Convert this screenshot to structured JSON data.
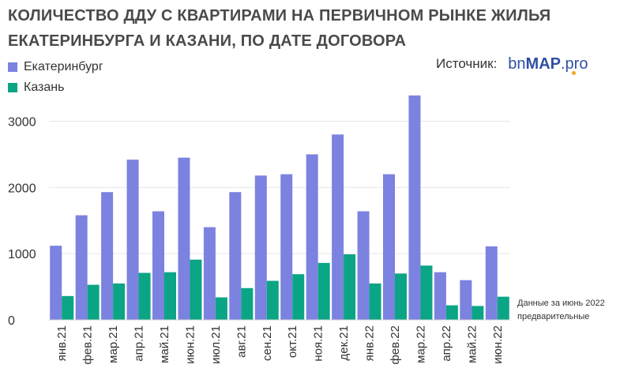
{
  "title": "КОЛИЧЕСТВО ДДУ С КВАРТИРАМИ НА ПЕРВИЧНОМ РЫНКЕ ЖИЛЬЯ ЕКАТЕРИНБУРГА И КАЗАНИ, ПО ДАТЕ ДОГОВОРА",
  "source": {
    "label": "Источник:",
    "logo_part1": "bn",
    "logo_part2": "MAP",
    "logo_part3": ".pro",
    "logo_color": "#2f4fa3",
    "logo_dot_color": "#f5a623"
  },
  "note": "Данные за июнь 2022 предварительные",
  "chart_data": {
    "type": "bar",
    "title": "КОЛИЧЕСТВО ДДУ С КВАРТИРАМИ НА ПЕРВИЧНОМ РЫНКЕ ЖИЛЬЯ ЕКАТЕРИНБУРГА И КАЗАНИ, ПО ДАТЕ ДОГОВОРА",
    "xlabel": "",
    "ylabel": "",
    "ylim": [
      0,
      3400
    ],
    "yticks": [
      0,
      1000,
      2000,
      3000
    ],
    "grid": true,
    "legend_position": "top-left",
    "categories": [
      "янв.21",
      "фев.21",
      "мар.21",
      "апр.21",
      "май.21",
      "июн.21",
      "июл.21",
      "авг.21",
      "сен.21",
      "окт.21",
      "ноя.21",
      "дек.21",
      "янв.22",
      "фев.22",
      "мар.22",
      "апр.22",
      "май.22",
      "июн.22"
    ],
    "series": [
      {
        "name": "Екатеринбург",
        "color": "#7b82e0",
        "values": [
          1120,
          1580,
          1930,
          2420,
          1640,
          2450,
          1400,
          1930,
          2180,
          2200,
          2500,
          2800,
          1640,
          2200,
          3390,
          720,
          600,
          1110
        ]
      },
      {
        "name": "Казань",
        "color": "#0aa585",
        "values": [
          360,
          530,
          550,
          710,
          720,
          910,
          340,
          480,
          590,
          690,
          860,
          990,
          550,
          700,
          820,
          220,
          210,
          350
        ]
      }
    ]
  }
}
